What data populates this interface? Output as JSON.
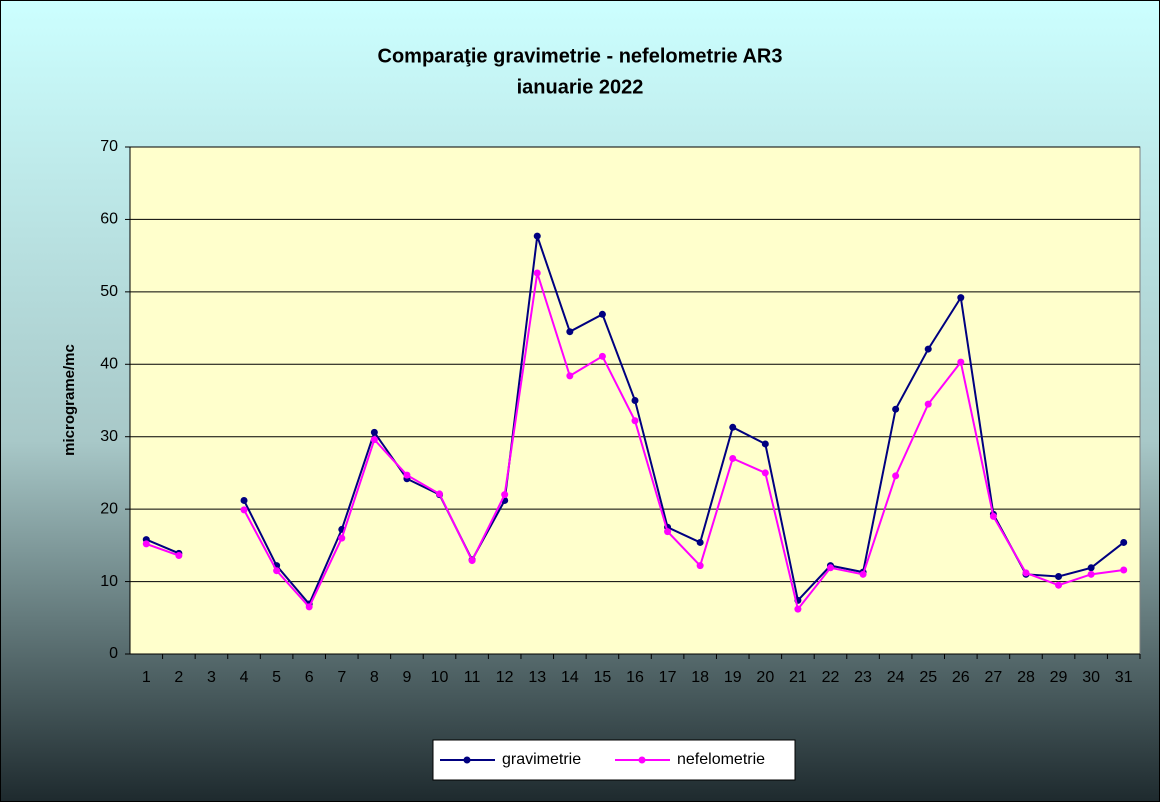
{
  "chart_data": {
    "type": "line",
    "title": "Comparaţie gravimetrie - nefelometrie AR3",
    "subtitle": "ianuarie 2022",
    "y_label": "micrograme/mc",
    "categories": [
      "1",
      "2",
      "3",
      "4",
      "5",
      "6",
      "7",
      "8",
      "9",
      "10",
      "11",
      "12",
      "13",
      "14",
      "15",
      "16",
      "17",
      "18",
      "19",
      "20",
      "21",
      "22",
      "23",
      "24",
      "25",
      "26",
      "27",
      "28",
      "29",
      "30",
      "31"
    ],
    "series": [
      {
        "name": "gravimetrie",
        "color": "#000080",
        "values": [
          15.8,
          13.9,
          null,
          21.2,
          12.2,
          6.9,
          17.2,
          30.6,
          24.2,
          22.0,
          13.0,
          21.2,
          57.7,
          44.5,
          46.9,
          35.0,
          17.5,
          15.4,
          31.3,
          29.0,
          7.4,
          12.2,
          11.3,
          33.8,
          42.1,
          49.2,
          19.3,
          11.0,
          10.7,
          11.9,
          15.4
        ]
      },
      {
        "name": "nefelometrie",
        "color": "#ff00ff",
        "values": [
          15.2,
          13.6,
          null,
          19.9,
          11.5,
          6.5,
          16.0,
          29.6,
          24.7,
          22.1,
          12.9,
          22.0,
          52.6,
          38.4,
          41.1,
          32.2,
          16.9,
          12.2,
          27.0,
          25.0,
          6.2,
          11.9,
          11.0,
          24.6,
          34.5,
          40.3,
          19.0,
          11.2,
          9.5,
          11.0,
          11.6
        ]
      }
    ],
    "ylim": [
      0,
      70
    ],
    "yticks": [
      0,
      10,
      20,
      30,
      40,
      50,
      60,
      70
    ],
    "grid": true,
    "legend": "bottom"
  }
}
